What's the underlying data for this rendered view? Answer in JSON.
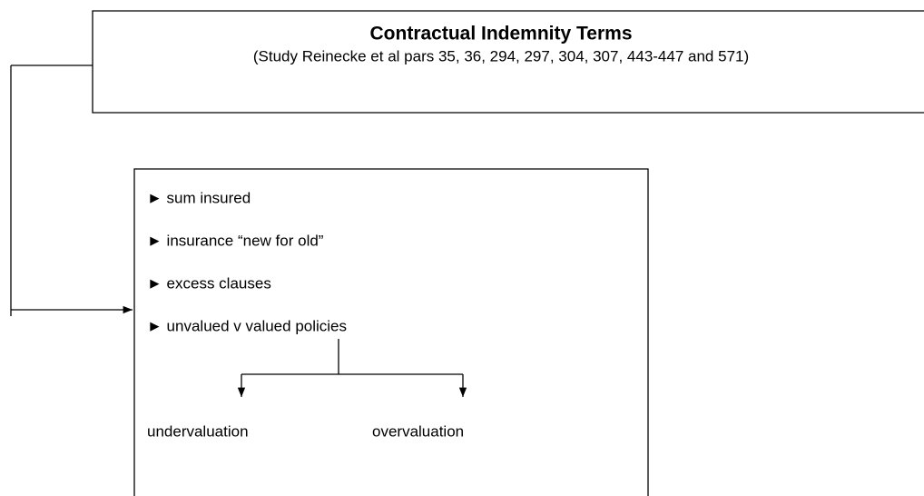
{
  "header": {
    "title": "Contractual Indemnity Terms",
    "subtitle": "(Study Reinecke et al pars 35, 36, 294, 297, 304, 307, 443-447 and 571)"
  },
  "items": [
    "► sum insured",
    "► insurance “new for old”",
    "► excess clauses",
    "► unvalued v valued policies"
  ],
  "branches": [
    "undervaluation",
    "overvaluation"
  ]
}
